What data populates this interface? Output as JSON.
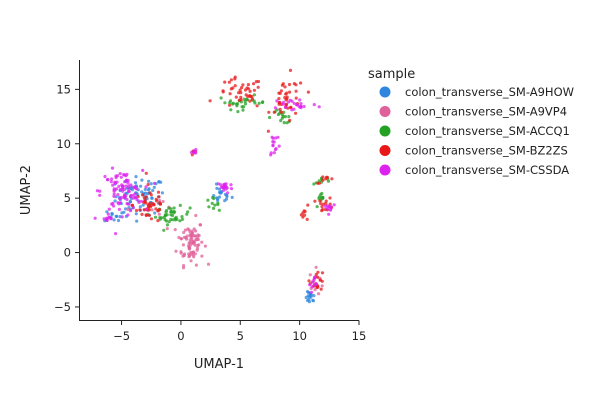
{
  "chart_data": {
    "type": "scatter",
    "title": "",
    "xlabel": "UMAP-1",
    "ylabel": "UMAP-2",
    "xlim": [
      -8.5,
      15
    ],
    "ylim": [
      -6.2,
      17.7
    ],
    "xticks": [
      -5,
      0,
      5,
      10,
      15
    ],
    "yticks": [
      -5,
      0,
      5,
      10,
      15
    ],
    "xtick_labels": [
      "−5",
      "0",
      "5",
      "10",
      "15"
    ],
    "ytick_labels": [
      "−5",
      "0",
      "5",
      "10",
      "15"
    ],
    "grid": false,
    "legend": {
      "title": "sample",
      "placement": "right"
    },
    "series": [
      {
        "name": "colon_transverse_SM-A9HOW",
        "color": "#2e86de",
        "clusters": [
          {
            "cx": -3.4,
            "cy": 5.2,
            "sx": 1.3,
            "sy": 1.1,
            "n": 70
          },
          {
            "cx": 3.3,
            "cy": 5.3,
            "sx": 0.6,
            "sy": 0.5,
            "n": 18
          },
          {
            "cx": 10.9,
            "cy": -4.2,
            "sx": 0.25,
            "sy": 0.35,
            "n": 16
          },
          {
            "cx": -5.5,
            "cy": 3.4,
            "sx": 0.6,
            "sy": 0.4,
            "n": 14
          }
        ]
      },
      {
        "name": "colon_transverse_SM-A9VP4",
        "color": "#e0609a",
        "clusters": [
          {
            "cx": 0.8,
            "cy": 1.0,
            "sx": 0.7,
            "sy": 1.3,
            "n": 80
          },
          {
            "cx": 11.4,
            "cy": -2.8,
            "sx": 0.35,
            "sy": 0.8,
            "n": 16
          },
          {
            "cx": -3.0,
            "cy": 4.3,
            "sx": 0.9,
            "sy": 0.6,
            "n": 10
          }
        ]
      },
      {
        "name": "colon_transverse_SM-ACCQ1",
        "color": "#22a122",
        "clusters": [
          {
            "cx": -0.7,
            "cy": 3.4,
            "sx": 0.9,
            "sy": 0.5,
            "n": 40
          },
          {
            "cx": 5.2,
            "cy": 13.8,
            "sx": 1.3,
            "sy": 0.4,
            "n": 28
          },
          {
            "cx": 8.5,
            "cy": 12.5,
            "sx": 0.8,
            "sy": 0.4,
            "n": 16
          },
          {
            "cx": 2.6,
            "cy": 4.5,
            "sx": 0.35,
            "sy": 0.3,
            "n": 10
          },
          {
            "cx": 11.8,
            "cy": 4.8,
            "sx": 0.3,
            "sy": 0.4,
            "n": 10
          },
          {
            "cx": 12.0,
            "cy": 6.6,
            "sx": 0.5,
            "sy": 0.2,
            "n": 8
          }
        ]
      },
      {
        "name": "colon_transverse_SM-BZ2ZS",
        "color": "#e81818",
        "clusters": [
          {
            "cx": -2.6,
            "cy": 4.4,
            "sx": 0.9,
            "sy": 1.1,
            "n": 45
          },
          {
            "cx": 5.0,
            "cy": 14.6,
            "sx": 1.2,
            "sy": 0.9,
            "n": 40
          },
          {
            "cx": 9.0,
            "cy": 14.0,
            "sx": 0.9,
            "sy": 1.4,
            "n": 40
          },
          {
            "cx": 12.2,
            "cy": 4.4,
            "sx": 0.4,
            "sy": 0.4,
            "n": 14
          },
          {
            "cx": 11.5,
            "cy": -2.5,
            "sx": 0.4,
            "sy": 0.6,
            "n": 14
          },
          {
            "cx": 10.5,
            "cy": 3.6,
            "sx": 0.4,
            "sy": 0.4,
            "n": 8
          },
          {
            "cx": 12.2,
            "cy": 6.7,
            "sx": 0.5,
            "sy": 0.2,
            "n": 8
          },
          {
            "cx": 1.1,
            "cy": 9.2,
            "sx": 0.12,
            "sy": 0.2,
            "n": 5
          }
        ]
      },
      {
        "name": "colon_transverse_SM-CSSDA",
        "color": "#dd22f0",
        "clusters": [
          {
            "cx": -5.0,
            "cy": 5.6,
            "sx": 1.1,
            "sy": 1.2,
            "n": 90
          },
          {
            "cx": 3.7,
            "cy": 6.0,
            "sx": 0.4,
            "sy": 0.35,
            "n": 22
          },
          {
            "cx": 9.6,
            "cy": 13.6,
            "sx": 1.2,
            "sy": 0.4,
            "n": 22
          },
          {
            "cx": 7.9,
            "cy": 10.0,
            "sx": 0.3,
            "sy": 0.8,
            "n": 14
          },
          {
            "cx": 12.5,
            "cy": 4.2,
            "sx": 0.35,
            "sy": 0.3,
            "n": 10
          },
          {
            "cx": 11.3,
            "cy": -3.0,
            "sx": 0.3,
            "sy": 0.5,
            "n": 10
          },
          {
            "cx": -6.3,
            "cy": 3.1,
            "sx": 0.4,
            "sy": 0.3,
            "n": 10
          },
          {
            "cx": 1.1,
            "cy": 9.3,
            "sx": 0.12,
            "sy": 0.2,
            "n": 5
          }
        ]
      }
    ]
  }
}
